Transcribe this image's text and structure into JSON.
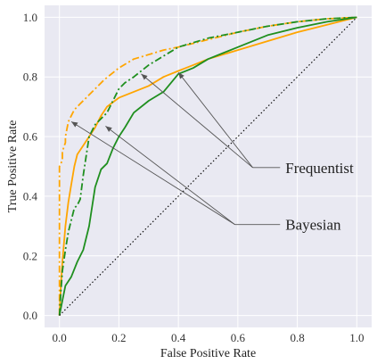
{
  "chart_data": {
    "type": "line",
    "xlabel": "False Positive Rate",
    "ylabel": "True Positive Rate",
    "xlim": [
      -0.05,
      1.05
    ],
    "ylim": [
      -0.04,
      1.04
    ],
    "xticks": [
      "0.0",
      "0.2",
      "0.4",
      "0.6",
      "0.8",
      "1.0"
    ],
    "yticks": [
      "0.0",
      "0.2",
      "0.4",
      "0.6",
      "0.8",
      "1.0"
    ],
    "grid": true,
    "background": "#e9e9f2",
    "series": [
      {
        "color": "#ffa500",
        "style": "dashdot",
        "x": [
          0,
          0.0,
          0.01,
          0.01,
          0.02,
          0.02,
          0.03,
          0.04,
          0.05,
          0.07,
          0.09,
          0.12,
          0.15,
          0.2,
          0.25,
          0.3,
          0.35,
          0.4,
          0.5,
          0.6,
          0.7,
          0.8,
          0.9,
          1.0
        ],
        "y": [
          0,
          0.5,
          0.52,
          0.55,
          0.58,
          0.6,
          0.65,
          0.67,
          0.69,
          0.71,
          0.73,
          0.76,
          0.79,
          0.83,
          0.86,
          0.875,
          0.89,
          0.9,
          0.925,
          0.95,
          0.97,
          0.985,
          0.995,
          1.0
        ]
      },
      {
        "color": "#ffa500",
        "style": "solid",
        "x": [
          0,
          0.005,
          0.01,
          0.02,
          0.03,
          0.04,
          0.05,
          0.06,
          0.08,
          0.1,
          0.12,
          0.14,
          0.16,
          0.2,
          0.25,
          0.3,
          0.35,
          0.4,
          0.45,
          0.5,
          0.6,
          0.7,
          0.8,
          0.9,
          1.0
        ],
        "y": [
          0,
          0.1,
          0.18,
          0.3,
          0.38,
          0.44,
          0.5,
          0.54,
          0.57,
          0.6,
          0.63,
          0.67,
          0.7,
          0.73,
          0.75,
          0.77,
          0.8,
          0.82,
          0.84,
          0.86,
          0.89,
          0.92,
          0.95,
          0.975,
          1.0
        ]
      },
      {
        "color": "#1f8f1f",
        "style": "dashdot",
        "x": [
          0,
          0.005,
          0.01,
          0.02,
          0.03,
          0.04,
          0.05,
          0.06,
          0.07,
          0.08,
          0.1,
          0.12,
          0.14,
          0.16,
          0.18,
          0.2,
          0.22,
          0.25,
          0.3,
          0.35,
          0.4,
          0.5,
          0.6,
          0.7,
          0.8,
          0.9,
          1.0
        ],
        "y": [
          0,
          0.08,
          0.15,
          0.22,
          0.28,
          0.32,
          0.36,
          0.37,
          0.39,
          0.47,
          0.6,
          0.64,
          0.66,
          0.68,
          0.72,
          0.76,
          0.78,
          0.8,
          0.84,
          0.87,
          0.9,
          0.93,
          0.95,
          0.97,
          0.985,
          0.995,
          1.0
        ]
      },
      {
        "color": "#1f8f1f",
        "style": "solid",
        "x": [
          0,
          0.01,
          0.02,
          0.04,
          0.06,
          0.08,
          0.1,
          0.12,
          0.14,
          0.16,
          0.18,
          0.2,
          0.22,
          0.25,
          0.3,
          0.35,
          0.4,
          0.45,
          0.5,
          0.55,
          0.6,
          0.7,
          0.8,
          0.9,
          1.0
        ],
        "y": [
          0,
          0.05,
          0.1,
          0.13,
          0.18,
          0.22,
          0.3,
          0.43,
          0.49,
          0.51,
          0.56,
          0.6,
          0.63,
          0.68,
          0.72,
          0.75,
          0.81,
          0.83,
          0.86,
          0.88,
          0.9,
          0.94,
          0.965,
          0.985,
          1.0
        ]
      },
      {
        "color": "#000000",
        "style": "dotted",
        "x": [
          0,
          1
        ],
        "y": [
          0,
          1
        ]
      }
    ],
    "annotations": [
      {
        "text": "Frequentist",
        "arrow_targets": [
          [
            0.275,
            0.81
          ],
          [
            0.4,
            0.815
          ]
        ]
      },
      {
        "text": "Bayesian",
        "arrow_targets": [
          [
            0.04,
            0.65
          ],
          [
            0.155,
            0.635
          ]
        ]
      }
    ]
  }
}
